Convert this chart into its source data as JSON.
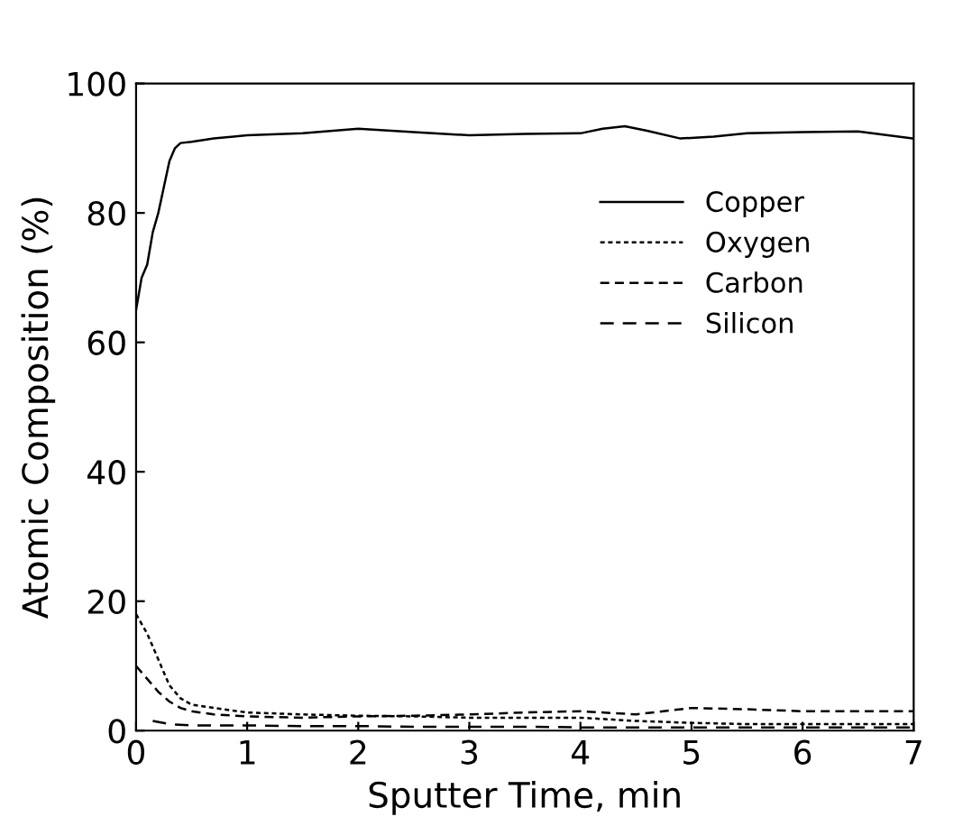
{
  "chart_data": {
    "type": "line",
    "xlabel": "Sputter Time, min",
    "ylabel": "Atomic Composition (%)",
    "xlim": [
      0,
      7
    ],
    "xticks": [
      0,
      1,
      2,
      3,
      4,
      5,
      6,
      7
    ],
    "ylim": [
      0,
      100
    ],
    "yticks": [
      0,
      20,
      40,
      60,
      80,
      100
    ],
    "grid": false,
    "legend": "right",
    "marker": "none",
    "series": [
      {
        "name": "Copper",
        "color": "#000000",
        "line_style": "solid",
        "x": [
          0,
          0.05,
          0.1,
          0.15,
          0.2,
          0.25,
          0.3,
          0.35,
          0.4,
          0.5,
          0.7,
          1.0,
          1.5,
          2.0,
          2.5,
          3.0,
          3.5,
          4.0,
          4.2,
          4.4,
          4.6,
          4.9,
          5.2,
          5.5,
          6.0,
          6.5,
          7.0
        ],
        "values": [
          65,
          70,
          72,
          77,
          80,
          84,
          88,
          90,
          90.8,
          91,
          91.5,
          92,
          92.3,
          93,
          92.5,
          92,
          92.2,
          92.3,
          93,
          93.4,
          92.7,
          91.5,
          91.8,
          92.3,
          92.5,
          92.6,
          91.5
        ]
      },
      {
        "name": "Oxygen",
        "color": "#000000",
        "line_style": "dotted",
        "x": [
          0,
          0.1,
          0.2,
          0.3,
          0.4,
          0.5,
          0.7,
          1.0,
          1.5,
          2.0,
          2.5,
          3.0,
          3.5,
          4.0,
          4.5,
          5.0,
          5.5,
          6.0,
          6.5,
          7.0
        ],
        "values": [
          18,
          15,
          11,
          7,
          5,
          4,
          3.5,
          2.8,
          2.5,
          2.3,
          2.2,
          2,
          2,
          2,
          1.5,
          1.2,
          1,
          1,
          1,
          1
        ]
      },
      {
        "name": "Carbon",
        "color": "#000000",
        "line_style": "dashed",
        "x": [
          0,
          0.1,
          0.2,
          0.3,
          0.4,
          0.5,
          0.7,
          1.0,
          1.5,
          2.0,
          2.5,
          3.0,
          3.5,
          4.0,
          4.5,
          5.0,
          5.5,
          6.0,
          6.5,
          7.0
        ],
        "values": [
          10,
          8,
          6,
          4.5,
          3.5,
          3,
          2.5,
          2.2,
          2,
          2.2,
          2.3,
          2.5,
          2.8,
          3,
          2.5,
          3.5,
          3.3,
          3,
          3,
          3
        ]
      },
      {
        "name": "Silicon",
        "color": "#000000",
        "line_style": "dashed",
        "x": [
          0.15,
          0.3,
          0.5,
          1.0,
          1.5,
          2.0,
          2.5,
          3.0,
          3.5,
          4.0,
          4.5,
          5.0,
          5.5,
          6.0,
          6.5,
          7.0
        ],
        "values": [
          1.5,
          1,
          0.8,
          0.8,
          0.7,
          0.7,
          0.6,
          0.6,
          0.6,
          0.5,
          0.5,
          0.5,
          0.5,
          0.5,
          0.5,
          0.5
        ]
      }
    ]
  }
}
